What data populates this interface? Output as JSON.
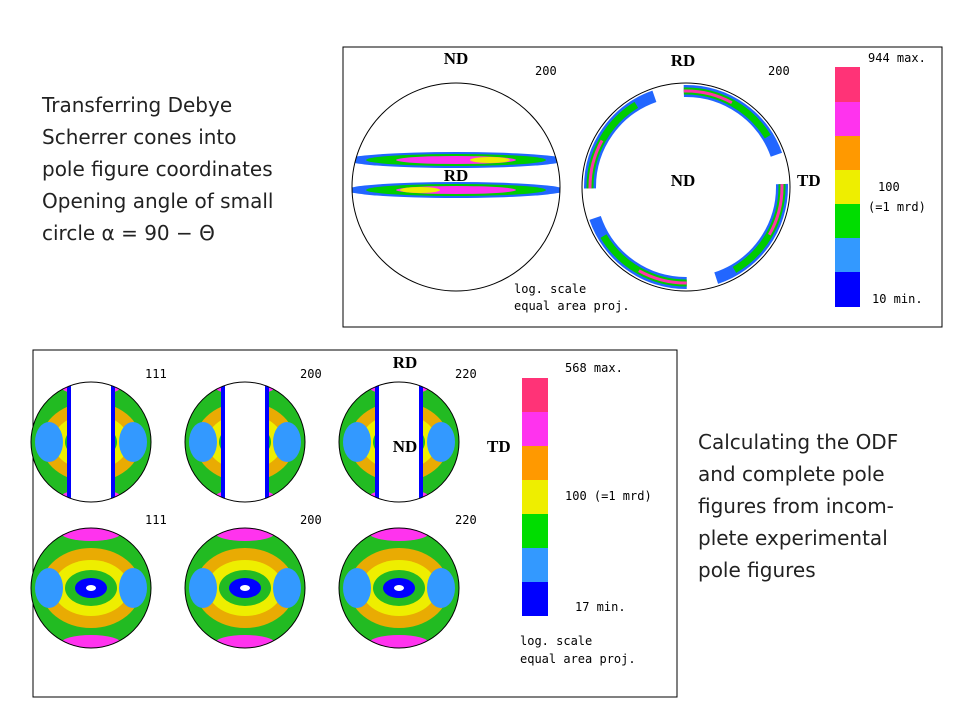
{
  "top_text": [
    "Transferring Debye",
    "Scherrer cones into",
    "pole figure coordinates",
    "Opening angle of small",
    "circle α = 90 − Θ"
  ],
  "top_panel": {
    "figure_1": {
      "hkl": "200",
      "north": "ND",
      "center": "RD"
    },
    "figure_2": {
      "hkl": "200",
      "north": "RD",
      "center": "ND",
      "east": "TD"
    },
    "scale": {
      "max": "944 max.",
      "mid": "100",
      "mid_note": "(=1 mrd)",
      "min": "10 min."
    },
    "notes": [
      "log. scale",
      "equal area proj."
    ]
  },
  "bottom_panel": {
    "top_row": [
      "111",
      "200",
      "220"
    ],
    "bottom_row": [
      "111",
      "200",
      "220"
    ],
    "axes": {
      "north": "RD",
      "center": "ND",
      "east": "TD"
    },
    "scale": {
      "max": "568 max.",
      "mid": "100 (=1 mrd)",
      "min": "17 min."
    },
    "notes": [
      "log. scale",
      "equal area proj."
    ]
  },
  "bottom_text": [
    "Calculating the ODF",
    "and complete pole",
    "figures from incom-",
    "plete experimental",
    "pole figures"
  ]
}
